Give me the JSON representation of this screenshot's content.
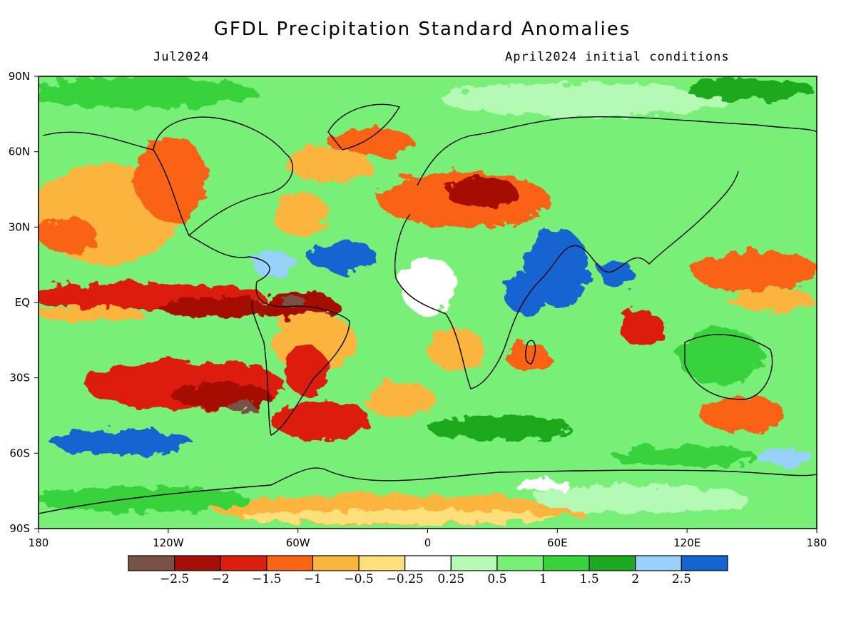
{
  "header": {
    "title": "GFDL Precipitation Standard Anomalies",
    "valid_month": "Jul2024",
    "init_conditions": "April2024 initial conditions"
  },
  "map": {
    "projection": "equirectangular",
    "lat_labels": [
      "90N",
      "60N",
      "30N",
      "EQ",
      "30S",
      "60S",
      "90S"
    ],
    "lon_labels": [
      "180",
      "120W",
      "60W",
      "0",
      "60E",
      "120E",
      "180"
    ],
    "regions": [
      {
        "name": "central-eq-pacific",
        "anomaly": -2.0
      },
      {
        "name": "northern-south-america",
        "anomaly": -2.5
      },
      {
        "name": "southeast-pacific",
        "anomaly": -2.0
      },
      {
        "name": "argentina-south-atlantic",
        "anomaly": -1.5
      },
      {
        "name": "north-atlantic-tropical",
        "anomaly": 2.5
      },
      {
        "name": "arabian-sea-horn-of-africa",
        "anomaly": 2.5
      },
      {
        "name": "bay-of-bengal",
        "anomaly": 2.5
      },
      {
        "name": "eastern-europe-turkey",
        "anomaly": -2.0
      },
      {
        "name": "northwest-pacific",
        "anomaly": -1.0
      },
      {
        "name": "southern-ocean",
        "anomaly": 1.5
      },
      {
        "name": "antarctica-atlantic-sector",
        "anomaly": -0.5
      }
    ]
  },
  "colorbar": {
    "labels": [
      "−2.5",
      "−2",
      "−1.5",
      "−1",
      "−0.5",
      "−0.25",
      "0.25",
      "0.5",
      "1",
      "1.5",
      "2",
      "2.5"
    ],
    "colors": [
      "#7a5145",
      "#a50f06",
      "#dc1e0e",
      "#fa6414",
      "#fbb43c",
      "#fde07a",
      "#ffffff",
      "#b4fab4",
      "#78f078",
      "#37d23c",
      "#1eaa1e",
      "#96d2fa",
      "#1464d2"
    ]
  }
}
